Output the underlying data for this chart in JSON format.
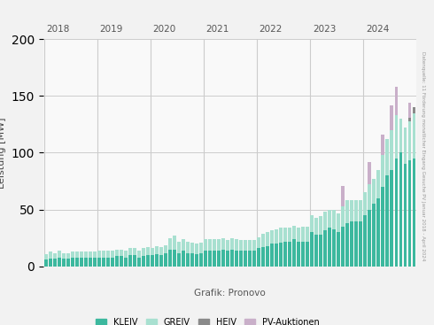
{
  "title": "",
  "ylabel": "Leistung [MW]",
  "xlabel": "Grafik: Pronovo",
  "source_text": "Datenquelle: 11 Förderung monatlicher Eingang Gesuche PV Januar 2018 - April 2024",
  "ylim": [
    0,
    200
  ],
  "yticks": [
    0,
    50,
    100,
    150,
    200
  ],
  "legend_labels": [
    "KLEIV",
    "GREIV",
    "HEIV",
    "PV-Auktionen"
  ],
  "colors": {
    "KLEIV": "#3cb89e",
    "GREIV": "#a8e0d0",
    "HEIV": "#8a8a8a",
    "PV-Auktionen": "#c9afc9"
  },
  "year_labels": [
    "2018",
    "2019",
    "2020",
    "2021",
    "2022",
    "2023",
    "2024"
  ],
  "data": {
    "KLEIV": [
      6,
      7,
      7,
      8,
      7,
      7,
      8,
      8,
      8,
      8,
      8,
      8,
      8,
      8,
      8,
      8,
      9,
      9,
      8,
      10,
      10,
      8,
      9,
      10,
      10,
      11,
      10,
      12,
      15,
      15,
      12,
      14,
      12,
      12,
      11,
      12,
      14,
      14,
      14,
      14,
      15,
      14,
      15,
      14,
      14,
      14,
      14,
      14,
      16,
      17,
      18,
      20,
      20,
      21,
      22,
      22,
      24,
      22,
      22,
      22,
      30,
      28,
      28,
      32,
      34,
      33,
      30,
      35,
      38,
      40,
      40,
      40,
      45,
      50,
      55,
      60,
      70,
      80,
      85,
      95,
      100,
      90,
      93,
      95
    ],
    "GREIV": [
      5,
      6,
      5,
      6,
      5,
      5,
      5,
      5,
      5,
      5,
      5,
      5,
      6,
      6,
      6,
      6,
      6,
      6,
      6,
      6,
      6,
      6,
      7,
      7,
      6,
      7,
      7,
      7,
      10,
      12,
      10,
      10,
      10,
      9,
      9,
      9,
      10,
      10,
      10,
      10,
      10,
      9,
      10,
      10,
      9,
      9,
      9,
      9,
      10,
      12,
      12,
      12,
      13,
      13,
      12,
      12,
      12,
      12,
      13,
      13,
      15,
      15,
      16,
      16,
      16,
      17,
      17,
      18,
      20,
      18,
      18,
      18,
      20,
      22,
      22,
      25,
      28,
      32,
      35,
      38,
      30,
      32,
      35,
      40
    ],
    "HEIV": [
      0,
      0,
      0,
      0,
      0,
      0,
      0,
      0,
      0,
      0,
      0,
      0,
      0,
      0,
      0,
      0,
      0,
      0,
      0,
      0,
      0,
      0,
      0,
      0,
      0,
      0,
      0,
      0,
      0,
      0,
      0,
      0,
      0,
      0,
      0,
      0,
      0,
      0,
      0,
      0,
      0,
      0,
      0,
      0,
      0,
      0,
      0,
      0,
      0,
      0,
      0,
      0,
      0,
      0,
      0,
      0,
      0,
      0,
      0,
      0,
      0,
      0,
      0,
      0,
      0,
      0,
      0,
      0,
      0,
      0,
      0,
      0,
      0,
      0,
      0,
      0,
      0,
      0,
      0,
      0,
      0,
      0,
      3,
      5
    ],
    "PV-Auktionen": [
      0,
      0,
      0,
      0,
      0,
      0,
      0,
      0,
      0,
      0,
      0,
      0,
      0,
      0,
      0,
      0,
      0,
      0,
      0,
      0,
      0,
      0,
      0,
      0,
      0,
      0,
      0,
      0,
      0,
      0,
      0,
      0,
      0,
      0,
      0,
      0,
      0,
      0,
      0,
      0,
      0,
      0,
      0,
      0,
      0,
      0,
      0,
      0,
      0,
      0,
      0,
      0,
      0,
      0,
      0,
      0,
      0,
      0,
      0,
      0,
      0,
      0,
      0,
      0,
      0,
      0,
      0,
      18,
      0,
      0,
      0,
      0,
      0,
      20,
      0,
      0,
      18,
      0,
      22,
      25,
      0,
      0,
      13,
      0
    ]
  },
  "background_color": "#f2f2f2",
  "plot_background": "#f9f9f9",
  "grid_color": "#cccccc",
  "bar_width": 0.75
}
